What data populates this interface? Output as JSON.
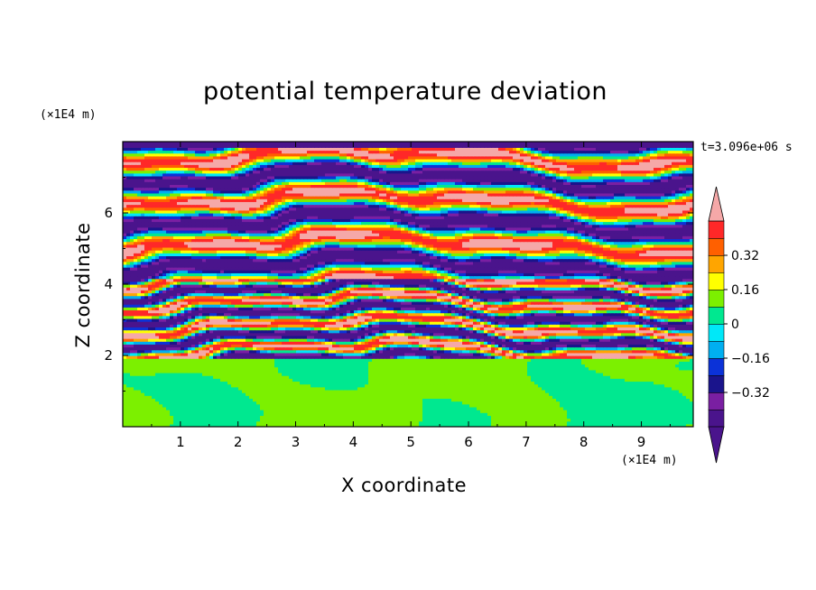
{
  "chart_data": {
    "type": "heatmap",
    "title": "potential temperature deviation",
    "xlabel": "X coordinate",
    "ylabel": "Z coordinate",
    "x_unit": "(×1E4 m)",
    "y_unit": "(×1E4 m)",
    "time_label": "t=3.096e+06 s",
    "xlim": [
      0,
      9.9
    ],
    "ylim": [
      0,
      8.0
    ],
    "x_ticks": [
      1,
      2,
      3,
      4,
      5,
      6,
      7,
      8,
      9
    ],
    "y_ticks": [
      2,
      4,
      6
    ],
    "colorbar": {
      "levels": [
        -0.48,
        -0.4,
        -0.32,
        -0.24,
        -0.16,
        -0.08,
        0,
        0.08,
        0.16,
        0.24,
        0.32,
        0.4,
        0.48
      ],
      "tick_values": [
        -0.32,
        -0.16,
        0,
        0.16,
        0.32
      ],
      "tick_labels": [
        "−0.32",
        "−0.16",
        "0",
        "0.16",
        "0.32"
      ],
      "colors": [
        "#4a148c",
        "#7a1fa2",
        "#1a148c",
        "#0b32d8",
        "#00aff0",
        "#00e8f8",
        "#00e890",
        "#7cf000",
        "#ffff00",
        "#ffa500",
        "#ff6000",
        "#ff2828",
        "#f5a8a8"
      ],
      "extend": "both"
    },
    "bands": [
      {
        "z_range": [
          0,
          1.95
        ],
        "pattern": "mixed-layer",
        "values_range": [
          0,
          0.08
        ]
      },
      {
        "z_range": [
          1.95,
          4.2
        ],
        "pattern": "thin-layered",
        "values_range": [
          -0.48,
          0.48
        ]
      },
      {
        "z_range": [
          4.2,
          8.0
        ],
        "pattern": "thick-layered",
        "values_range": [
          -0.48,
          0.48
        ]
      }
    ]
  }
}
